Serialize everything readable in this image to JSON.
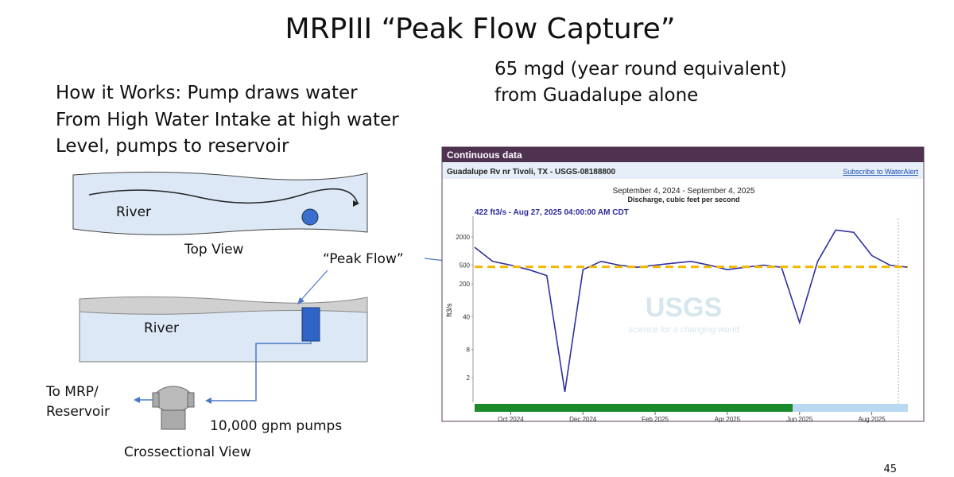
{
  "title": "MRPIII “Peak Flow Capture”",
  "note_lines": [
    "65 mgd (year round equivalent)",
    "from Guadalupe alone"
  ],
  "how_it_works": [
    "How it Works: Pump draws water",
    "From High Water Intake at high water",
    "Level, pumps to reservoir"
  ],
  "diagram": {
    "top_river": "River",
    "top_view": "Top View",
    "peak_flow": "“Peak Flow”",
    "cross_river": "River",
    "to_mrp": [
      "To MRP/",
      "Reservoir"
    ],
    "pumps": "10,000 gpm pumps",
    "cross_view": "Crossectional View"
  },
  "usgs": {
    "header": "Continuous data",
    "site": "Guadalupe Rv nr Tivoli, TX - USGS-08188800",
    "link": "Subscribe to WaterAlert",
    "logo": "USGS",
    "tagline": "science for a changing world"
  },
  "chart_data": {
    "type": "line",
    "title": "September 4, 2024 - September 4, 2025",
    "subtitle": "Discharge, cubic feet per second",
    "y_label": "ft3/s",
    "annotation": "422 ft3/s - Aug 27, 2025 04:00:00 AM CDT",
    "categories": [
      null,
      null,
      "Oct 2024",
      null,
      null,
      null,
      "Dec 2024",
      null,
      null,
      null,
      "Feb 2025",
      null,
      null,
      null,
      "Apr 2025",
      null,
      null,
      null,
      "Jun 2025",
      null,
      null,
      null,
      "Aug 2025",
      null,
      null
    ],
    "series": [
      {
        "name": "Discharge",
        "color": "#2f2fa0",
        "values": [
          1200,
          600,
          500,
          400,
          300,
          1,
          400,
          600,
          500,
          450,
          500,
          550,
          600,
          500,
          400,
          450,
          500,
          450,
          30,
          600,
          2800,
          2500,
          800,
          500,
          450
        ]
      }
    ],
    "threshold": 460,
    "threshold_color": "#f5b800",
    "log_scale": true,
    "ylim": [
      0.6,
      5500
    ],
    "yticks": [
      2000,
      500,
      200,
      40,
      8,
      2
    ],
    "grid": false
  },
  "page_number": "45"
}
